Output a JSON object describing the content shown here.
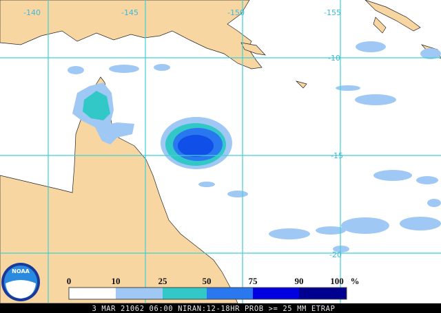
{
  "map": {
    "lon_labels": [
      -140,
      -145,
      -150,
      -155
    ],
    "lat_labels": [
      -10,
      -15,
      -20
    ]
  },
  "legend": {
    "labels": [
      0,
      10,
      25,
      50,
      75,
      90,
      100
    ],
    "unit": "%"
  },
  "logo": {
    "text": "NOAA"
  },
  "footer": {
    "text": "3 MAR 21062 06:00 NIRAN:12-18HR PROB >= 25 MM ETRAP"
  }
}
